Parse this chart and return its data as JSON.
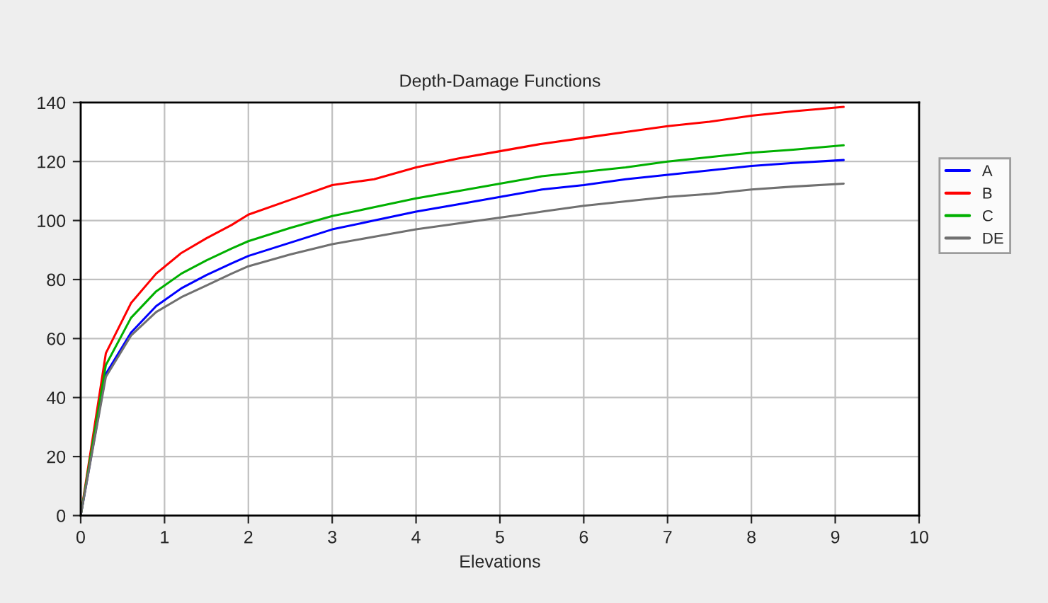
{
  "chart_data": {
    "type": "line",
    "title": "Depth-Damage Functions",
    "xlabel": "Elevations",
    "x": [
      0,
      0.3,
      0.6,
      0.9,
      1.2,
      1.5,
      1.8,
      2,
      2.5,
      3,
      3.5,
      4,
      4.5,
      5,
      5.5,
      6,
      6.5,
      7,
      7.5,
      8,
      8.5,
      9.1
    ],
    "series": [
      {
        "name": "A",
        "color": "#0000ff",
        "values": [
          0,
          48,
          62,
          71,
          77,
          81.5,
          85.5,
          88,
          92.5,
          97,
          100,
          103,
          105.5,
          108,
          110.5,
          112,
          114,
          115.5,
          117,
          118.5,
          119.5,
          120.5
        ]
      },
      {
        "name": "B",
        "color": "#ff0000",
        "values": [
          0,
          55,
          72,
          82,
          89,
          94,
          98.5,
          102,
          107,
          112,
          114,
          118,
          121,
          123.5,
          126,
          128,
          130,
          132,
          133.5,
          135.5,
          137,
          138.5
        ]
      },
      {
        "name": "C",
        "color": "#00b000",
        "values": [
          0,
          51,
          67,
          76,
          82,
          86.5,
          90.5,
          93,
          97.5,
          101.5,
          104.5,
          107.5,
          110,
          112.5,
          115,
          116.5,
          118,
          120,
          121.5,
          123,
          124,
          125.5
        ]
      },
      {
        "name": "DE",
        "color": "#707070",
        "values": [
          0,
          47,
          61,
          69,
          74,
          78,
          82,
          84.5,
          88.5,
          92,
          94.5,
          97,
          99,
          101,
          103,
          105,
          106.5,
          108,
          109,
          110.5,
          111.5,
          112.5
        ]
      }
    ],
    "xlim": [
      0,
      10
    ],
    "xticks": [
      0,
      1,
      2,
      3,
      4,
      5,
      6,
      7,
      8,
      9,
      10
    ],
    "ylim": [
      0,
      140
    ],
    "yticks": [
      0,
      20,
      40,
      60,
      80,
      100,
      120,
      140
    ],
    "grid": true,
    "legend": "right",
    "marker": "none",
    "line_style": "solid"
  }
}
